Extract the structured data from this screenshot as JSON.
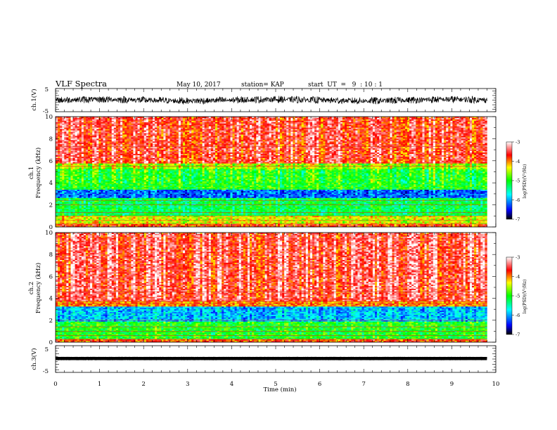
{
  "header": {
    "title": "VLF Spectra",
    "date": "May 10, 2017",
    "station": "station= KAP",
    "start_ut": "start  UT  =   9  : 10 : 1"
  },
  "axes": {
    "xlabel": "Time  (min)",
    "ch1_waveform_label": "ch.1(V)",
    "ch1_spectra_label_1": "ch.1",
    "ch1_spectra_label_2": "Frequency  (kHz)",
    "ch2_spectra_label_1": "ch.2",
    "ch2_spectra_label_2": "Frequency  (kHz)",
    "ch3_waveform_label": "ch.3(V)",
    "colorbar_label": "log(PSD)(V²/Hz)"
  },
  "colors": {
    "cmap": [
      "#000000",
      "#0000ff",
      "#00ffff",
      "#00ff00",
      "#ffff00",
      "#ff0000",
      "#ffffff"
    ]
  },
  "chart_data": [
    {
      "type": "line",
      "name": "ch1-waveform",
      "ylabel": "ch.1(V)",
      "xlim": [
        0,
        10
      ],
      "ylim": [
        -5,
        5
      ],
      "yticks": [
        "5",
        "-5"
      ],
      "trace": {
        "x_range": [
          0,
          9.8
        ],
        "center": 0,
        "amplitude": 1.6
      }
    },
    {
      "type": "heatmap",
      "name": "ch1-spectra",
      "xlabel": "Time  (min)",
      "ylabel": "Frequency  (kHz)",
      "xlim": [
        0,
        10
      ],
      "data_xlim": [
        0,
        9.8
      ],
      "ylim": [
        0,
        10
      ],
      "yticks": [
        "0",
        "2",
        "4",
        "6",
        "8",
        "10"
      ],
      "zlim": [
        -7,
        -3
      ],
      "bands": [
        {
          "from": 0,
          "to": 0.3,
          "level": -3.8
        },
        {
          "from": 0.3,
          "to": 1.0,
          "level": -4.4
        },
        {
          "from": 1.0,
          "to": 2.6,
          "level": -5.2
        },
        {
          "from": 2.6,
          "to": 3.4,
          "level": -6.2
        },
        {
          "from": 3.4,
          "to": 5.3,
          "level": -5.0
        },
        {
          "from": 5.3,
          "to": 5.7,
          "level": -4.6
        },
        {
          "from": 5.7,
          "to": 10,
          "level": -3.6
        }
      ],
      "lines": [
        0.3,
        0.6,
        1.0,
        1.3,
        2.0,
        2.4,
        5.5,
        7.3
      ]
    },
    {
      "type": "heatmap",
      "name": "ch2-spectra",
      "xlabel": "Time  (min)",
      "ylabel": "Frequency  (kHz)",
      "xlim": [
        0,
        10
      ],
      "data_xlim": [
        0,
        9.8
      ],
      "ylim": [
        0,
        10
      ],
      "yticks": [
        "0",
        "2",
        "4",
        "6",
        "8",
        "10"
      ],
      "zlim": [
        -7,
        -3
      ],
      "bands": [
        {
          "from": 0,
          "to": 0.3,
          "level": -3.8
        },
        {
          "from": 0.3,
          "to": 1.9,
          "level": -5.0
        },
        {
          "from": 1.9,
          "to": 3.2,
          "level": -5.9
        },
        {
          "from": 3.2,
          "to": 3.8,
          "level": -4.0
        },
        {
          "from": 3.8,
          "to": 10,
          "level": -3.5
        }
      ],
      "lines": [
        0.3,
        0.6,
        1.0,
        1.4,
        2.0,
        3.5,
        3.7,
        4.6
      ]
    },
    {
      "type": "line",
      "name": "ch3-waveform",
      "ylabel": "ch.3(V)",
      "xlabel": "Time  (min)",
      "xlim": [
        0,
        10
      ],
      "ylim": [
        -5,
        5
      ],
      "yticks": [
        "5",
        "-5"
      ],
      "xticks": [
        "0",
        "1",
        "2",
        "3",
        "4",
        "5",
        "6",
        "7",
        "8",
        "9",
        "10"
      ],
      "trace": {
        "x_range": [
          0,
          9.8
        ],
        "center": 0.2,
        "amplitude": 0.3
      }
    },
    {
      "type": "colorbar",
      "name": "ch1-colorbar",
      "label": "log(PSD)(V²/Hz)",
      "range": [
        -7,
        -3
      ],
      "ticks": [
        "-3",
        "-4",
        "-5",
        "-6",
        "-7"
      ]
    },
    {
      "type": "colorbar",
      "name": "ch2-colorbar",
      "label": "log(PSD)(V²/Hz)",
      "range": [
        -7,
        -3
      ],
      "ticks": [
        "-3",
        "-4",
        "-5",
        "-6",
        "-7"
      ]
    }
  ]
}
